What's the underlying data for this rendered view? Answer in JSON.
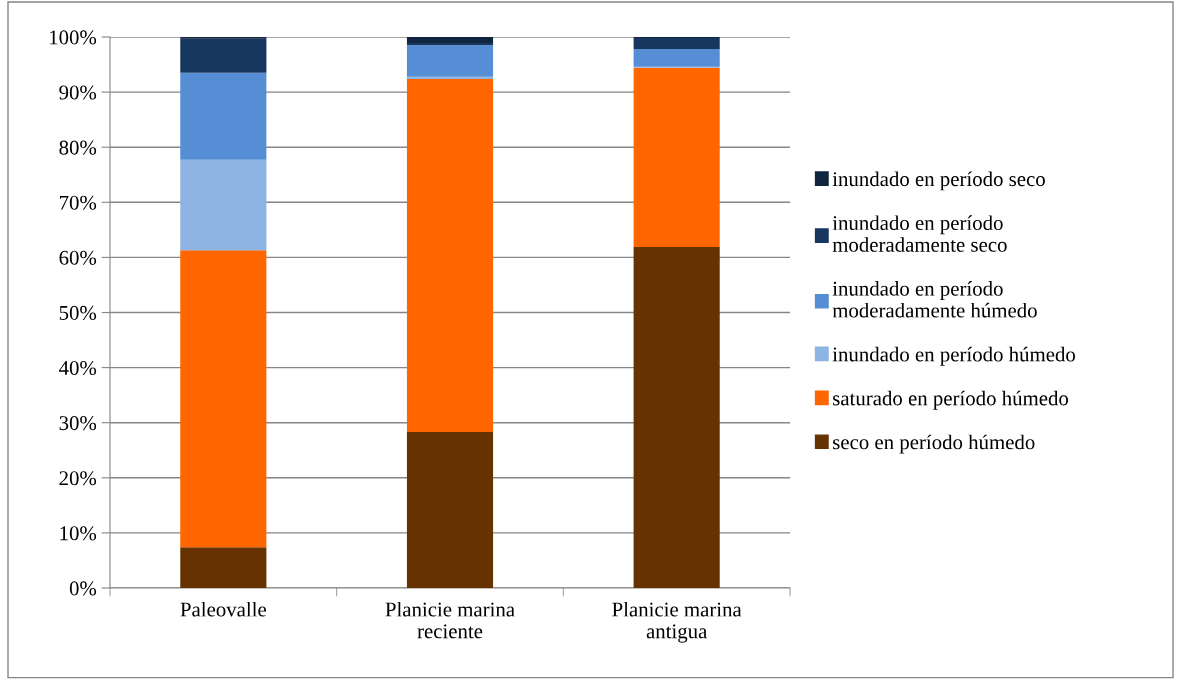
{
  "chart_data": {
    "type": "bar",
    "stacked": true,
    "categories": [
      "Paleovalle",
      "Planicie marina\nreciente",
      "Planicie marina\nantigua"
    ],
    "series": [
      {
        "name": "seco en período húmedo",
        "color": "#663300",
        "values": [
          7.4,
          28.3,
          61.9
        ]
      },
      {
        "name": "saturado en período húmedo",
        "color": "#ff6600",
        "values": [
          53.9,
          64.1,
          32.5
        ]
      },
      {
        "name": "inundado en período húmedo",
        "color": "#8eb4e3",
        "values": [
          16.4,
          0.4,
          0.2
        ]
      },
      {
        "name": "inundado en período\nmoderadamente húmedo",
        "color": "#558ed5",
        "values": [
          15.8,
          5.7,
          3.2
        ]
      },
      {
        "name": "inundado en período\nmoderadamente seco",
        "color": "#17375e",
        "values": [
          6.2,
          0.4,
          2.0
        ]
      },
      {
        "name": "inundado en período seco",
        "color": "#10253f",
        "values": [
          0.3,
          1.1,
          0.2
        ]
      }
    ],
    "ylim": [
      0,
      100
    ],
    "yticks": [
      {
        "value": 0,
        "label": "0%"
      },
      {
        "value": 10,
        "label": "10%"
      },
      {
        "value": 20,
        "label": "20%"
      },
      {
        "value": 30,
        "label": "30%"
      },
      {
        "value": 40,
        "label": "40%"
      },
      {
        "value": 50,
        "label": "50%"
      },
      {
        "value": 60,
        "label": "60%"
      },
      {
        "value": 70,
        "label": "70%"
      },
      {
        "value": 80,
        "label": "80%"
      },
      {
        "value": 90,
        "label": "90%"
      },
      {
        "value": 100,
        "label": "100%"
      }
    ],
    "grid": "y",
    "legend": "right"
  }
}
